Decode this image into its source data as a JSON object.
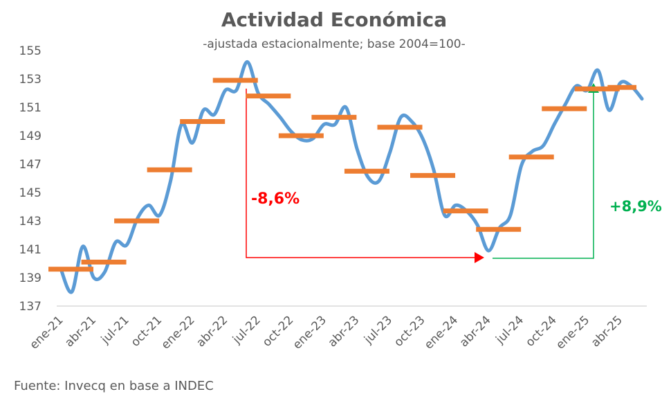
{
  "chart_data": {
    "type": "line",
    "title": "Actividad Económica",
    "subtitle": "-ajustada estacionalmente; base 2004=100-",
    "source": "Fuente: Invecq en base a INDEC",
    "ylim": [
      137,
      155
    ],
    "yticks": [
      137,
      139,
      141,
      143,
      145,
      147,
      149,
      151,
      153,
      155
    ],
    "xticks": [
      "ene-21",
      "abr-21",
      "jul-21",
      "oct-21",
      "ene-22",
      "abr-22",
      "jul-22",
      "oct-22",
      "ene-23",
      "abr-23",
      "jul-23",
      "oct-23",
      "ene-24",
      "abr-24",
      "jul-24",
      "oct-24",
      "ene-25",
      "abr-25"
    ],
    "grid": false,
    "colors": {
      "monthly": "#5b9bd5",
      "quarterly": "#ed7d31",
      "decline": "#ff0000",
      "rise": "#00b050",
      "text": "#595959"
    },
    "monthly": [
      139.6,
      138.0,
      141.2,
      139.0,
      139.4,
      141.5,
      141.3,
      143.2,
      144.1,
      143.4,
      145.8,
      149.8,
      148.5,
      150.8,
      150.5,
      152.2,
      152.2,
      154.2,
      152.0,
      151.2,
      150.3,
      149.3,
      148.7,
      148.8,
      149.8,
      149.8,
      151.0,
      148.1,
      146.1,
      145.8,
      147.8,
      150.3,
      150.0,
      148.8,
      146.6,
      143.4,
      144.1,
      143.7,
      142.7,
      140.9,
      142.5,
      143.4,
      146.9,
      147.9,
      148.3,
      149.8,
      151.2,
      152.5,
      152.2,
      153.6,
      150.8,
      152.7,
      152.5,
      151.6
    ],
    "quarterly": [
      139.6,
      140.1,
      143.0,
      146.6,
      150.0,
      152.9,
      151.8,
      149.0,
      150.3,
      146.5,
      149.6,
      146.2,
      143.7,
      142.4,
      147.5,
      150.9,
      152.3,
      152.4
    ],
    "annotations": [
      {
        "label": "-8,6%",
        "from_month": "may-22",
        "to_month": "abr-24",
        "color": "#ff0000"
      },
      {
        "label": "+8,9%",
        "from_month": "abr-24",
        "to_month": "ene-25",
        "color": "#00b050"
      }
    ]
  }
}
